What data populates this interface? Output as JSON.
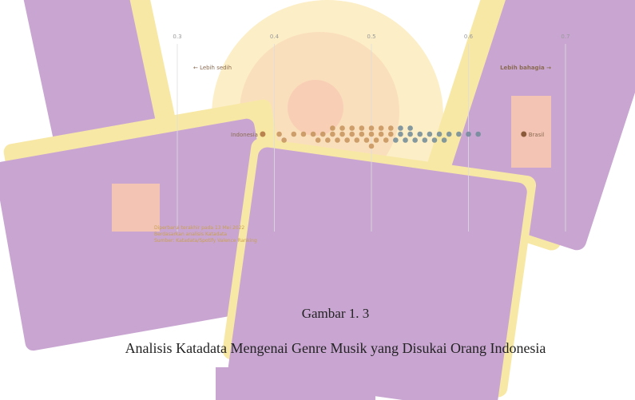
{
  "chart_data": {
    "type": "scatter",
    "xlim": [
      0.3,
      0.7
    ],
    "xticks": [
      0.3,
      0.4,
      0.5,
      0.6,
      0.7
    ],
    "grid": true,
    "left_label": "← Lebih sedih",
    "right_label": "Lebih bahagia →",
    "series": [
      {
        "color": "#c4935a",
        "values": [
          0.405,
          0.41,
          0.42,
          0.43,
          0.44,
          0.445,
          0.45,
          0.455,
          0.46,
          0.46,
          0.465,
          0.47,
          0.47,
          0.475,
          0.48,
          0.48,
          0.485,
          0.49,
          0.49,
          0.495,
          0.5,
          0.5,
          0.5,
          0.505,
          0.51,
          0.51,
          0.515,
          0.52,
          0.52
        ]
      },
      {
        "color": "#6f8a98",
        "values": [
          0.525,
          0.53,
          0.53,
          0.535,
          0.54,
          0.54,
          0.545,
          0.55,
          0.555,
          0.56,
          0.565,
          0.57,
          0.575,
          0.58,
          0.59,
          0.6,
          0.61
        ]
      }
    ],
    "highlights": [
      {
        "label": "Indonesia",
        "value": 0.388,
        "color": "#b8834e"
      },
      {
        "label": "Brasil",
        "value": 0.657,
        "color": "#8a5a3a"
      }
    ],
    "notes": [
      "Diperbarui terakhir pada 13 Mei 2022",
      "Berdasarkan analisis Katadata",
      "Sumber: Katadata/Spotify Valence Ranking"
    ]
  },
  "caption": {
    "number": "Gambar 1. 3",
    "title": "Analisis Katadata Mengenai Genre Musik yang Disukai Orang Indonesia"
  }
}
